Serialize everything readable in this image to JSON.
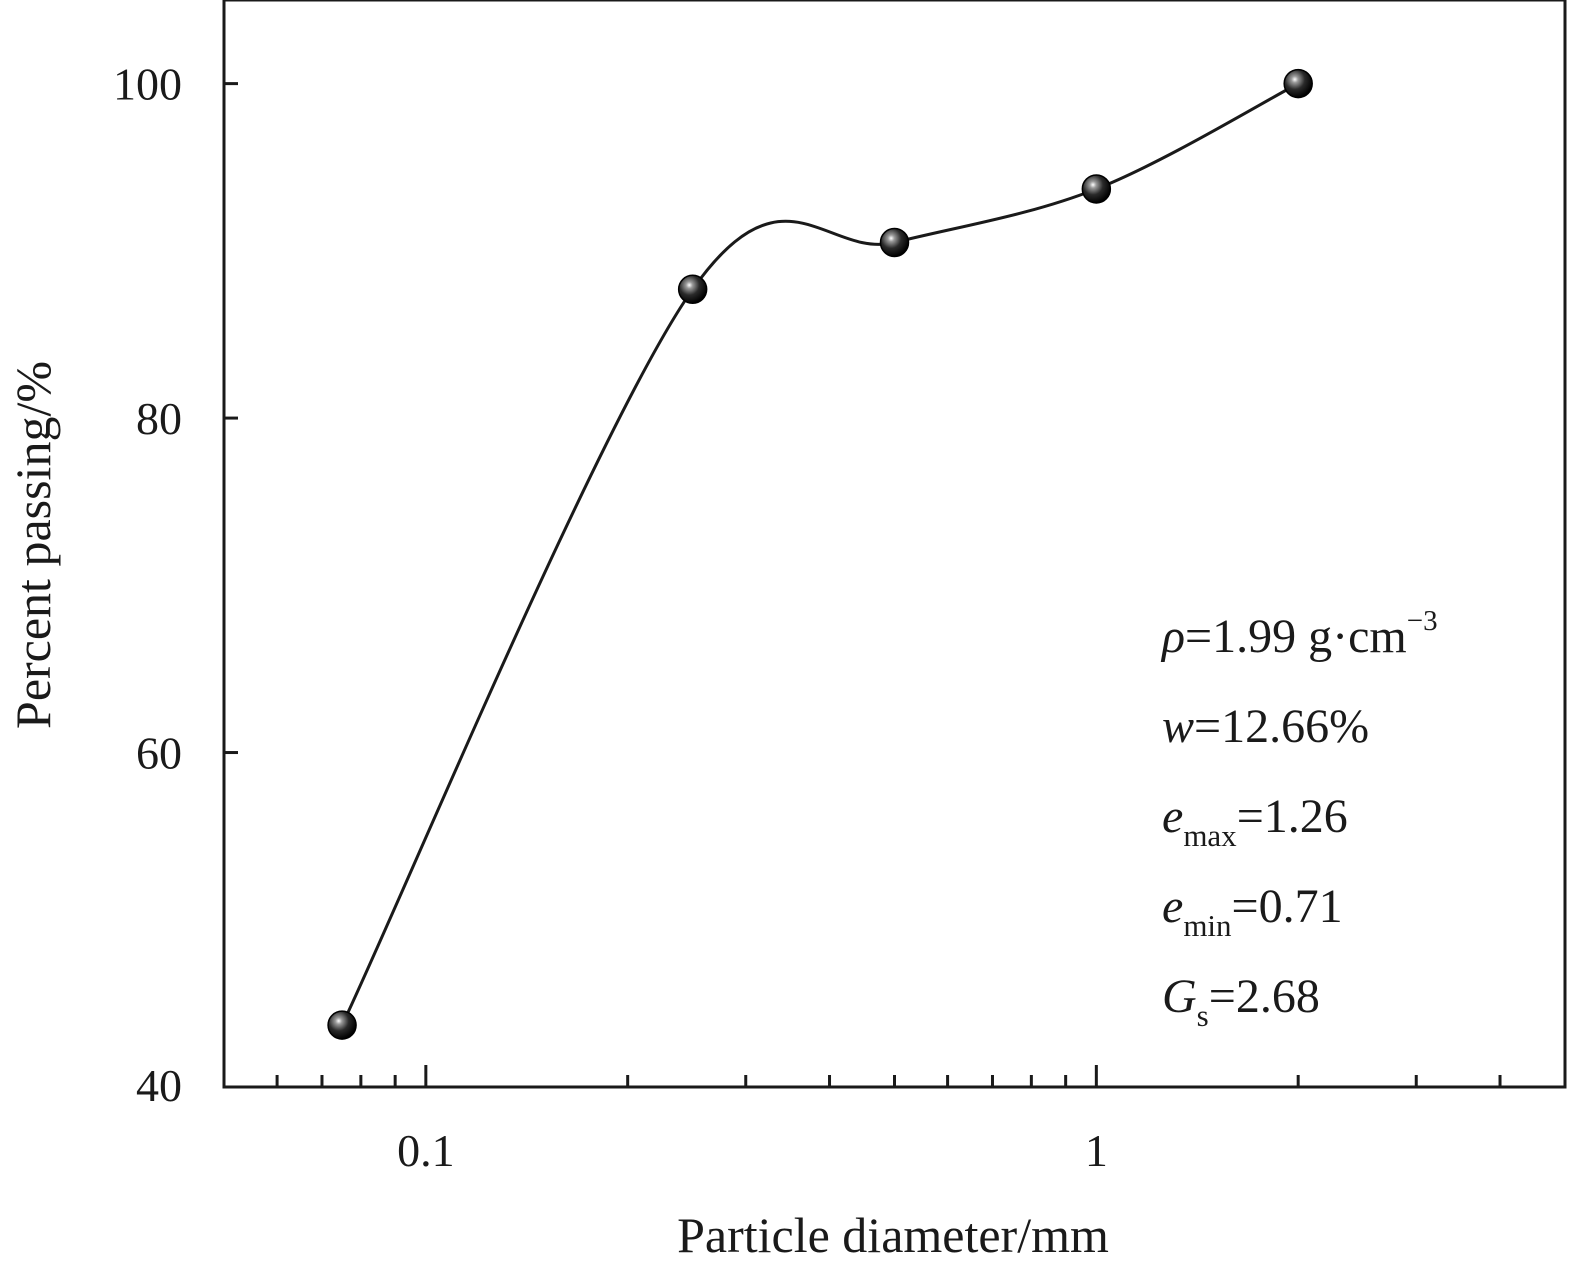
{
  "chart_data": {
    "type": "line",
    "x_scale": "log",
    "xlabel": "Particle diameter/mm",
    "ylabel": "Percent passing/%",
    "xlim": [
      0.05,
      5
    ],
    "ylim": [
      40,
      105
    ],
    "x_ticks": [
      0.1,
      1
    ],
    "x_tick_labels": [
      "0.1",
      "1"
    ],
    "y_ticks": [
      40,
      60,
      80,
      100
    ],
    "y_tick_labels": [
      "40",
      "60",
      "80",
      "100"
    ],
    "grid": false,
    "legend": "none",
    "series": [
      {
        "x": [
          0.075,
          0.25,
          0.5,
          1,
          2
        ],
        "y": [
          43.7,
          87.7,
          90.5,
          93.7,
          100
        ],
        "color": "#1a1a1a",
        "marker": "sphere",
        "smooth": true
      }
    ],
    "annotations": [
      {
        "id": "density",
        "symbol": "ρ",
        "subscript": "",
        "eq": "=1.99 g·cm",
        "superscript": "−3"
      },
      {
        "id": "water-content",
        "symbol": "w",
        "subscript": "",
        "eq": "=12.66%",
        "superscript": ""
      },
      {
        "id": "e-max",
        "symbol": "e",
        "subscript": "max",
        "eq": "=1.26",
        "superscript": ""
      },
      {
        "id": "e-min",
        "symbol": "e",
        "subscript": "min",
        "eq": "=0.71",
        "superscript": ""
      },
      {
        "id": "specific-gravity",
        "symbol": "G",
        "subscript": "s",
        "eq": "=2.68",
        "superscript": ""
      }
    ]
  }
}
